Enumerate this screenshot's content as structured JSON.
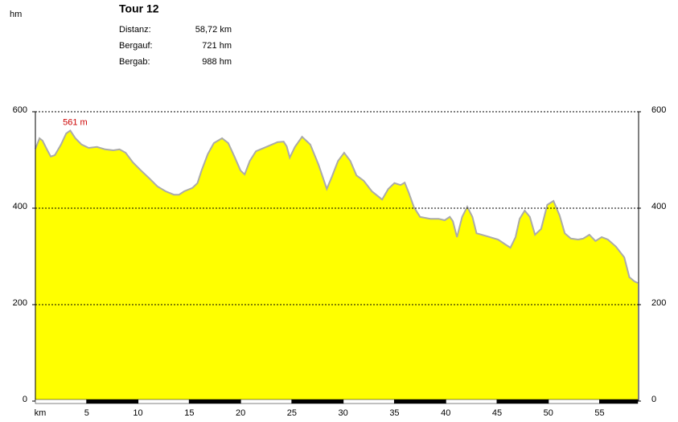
{
  "chart_data": {
    "type": "area",
    "title": "Tour 12",
    "stats": [
      {
        "label": "Distanz:",
        "value": "58,72 km"
      },
      {
        "label": "Bergauf:",
        "value": "721 hm"
      },
      {
        "label": "Bergab:",
        "value": "988 hm"
      }
    ],
    "y_label": "hm",
    "x_label": "km",
    "annotation": "561 m",
    "xlim": [
      0,
      58.72
    ],
    "xticks": [
      5,
      10,
      15,
      20,
      25,
      30,
      35,
      40,
      45,
      50,
      55
    ],
    "ylim": [
      0,
      600
    ],
    "yticks": [
      0,
      200,
      400,
      600
    ],
    "grid": true,
    "color": "#ffff00",
    "line_color": "#aaaaaa",
    "annotation_color": "#cc0000",
    "x": [
      0,
      0.4,
      0.7,
      1.1,
      1.5,
      1.9,
      2.5,
      3.0,
      3.4,
      3.9,
      4.5,
      5.2,
      6.0,
      6.8,
      7.6,
      8.2,
      8.8,
      9.5,
      10.3,
      11.1,
      11.9,
      12.7,
      13.5,
      14.0,
      14.5,
      15.3,
      15.8,
      16.2,
      16.8,
      17.4,
      18.2,
      18.8,
      19.4,
      20.0,
      20.4,
      20.9,
      21.5,
      22.5,
      23.6,
      24.2,
      24.5,
      24.8,
      25.3,
      26.0,
      26.8,
      27.6,
      28.4,
      28.9,
      29.5,
      30.1,
      30.7,
      31.3,
      32.0,
      32.8,
      33.8,
      34.4,
      35.0,
      35.6,
      36.0,
      36.4,
      36.9,
      37.5,
      38.5,
      39.3,
      39.9,
      40.4,
      40.7,
      41.1,
      41.6,
      42.1,
      42.6,
      43.0,
      44.0,
      45.1,
      45.8,
      46.3,
      46.8,
      47.2,
      47.7,
      48.2,
      48.7,
      49.3,
      49.9,
      50.5,
      51.1,
      51.6,
      52.2,
      52.9,
      53.4,
      54.0,
      54.6,
      55.2,
      55.8,
      56.6,
      57.4,
      57.9,
      58.4,
      58.72
    ],
    "values": [
      523,
      545,
      540,
      523,
      507,
      510,
      532,
      555,
      561,
      545,
      532,
      525,
      527,
      522,
      520,
      522,
      515,
      495,
      478,
      462,
      445,
      435,
      428,
      428,
      435,
      442,
      452,
      478,
      512,
      535,
      545,
      535,
      507,
      478,
      470,
      498,
      518,
      527,
      537,
      538,
      528,
      505,
      527,
      548,
      532,
      490,
      440,
      465,
      498,
      515,
      498,
      468,
      457,
      435,
      418,
      440,
      452,
      448,
      453,
      432,
      402,
      382,
      378,
      378,
      375,
      382,
      373,
      340,
      382,
      403,
      382,
      348,
      342,
      335,
      325,
      318,
      340,
      378,
      395,
      382,
      345,
      357,
      407,
      415,
      385,
      348,
      337,
      335,
      337,
      345,
      332,
      340,
      335,
      320,
      298,
      257,
      248,
      245
    ]
  }
}
